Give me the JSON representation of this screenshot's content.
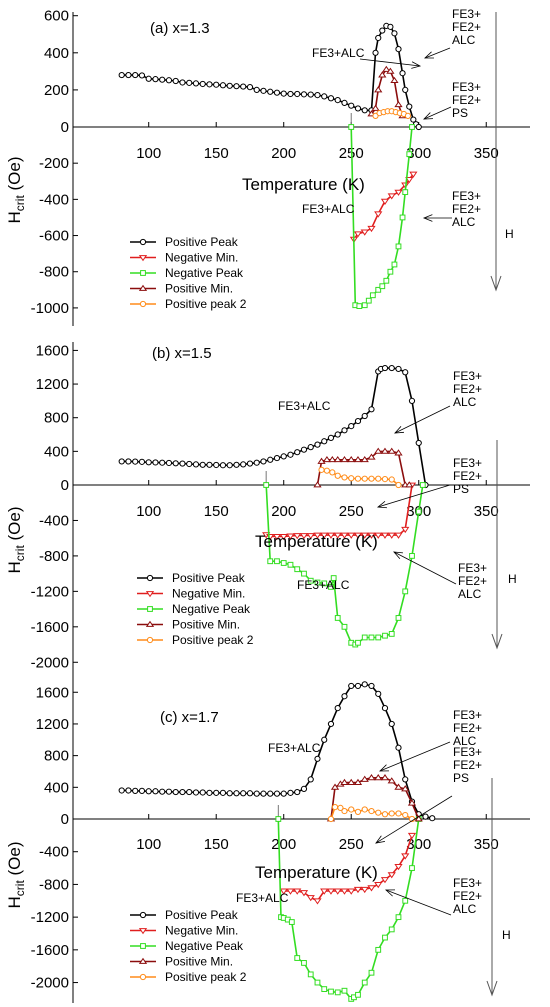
{
  "chart_data": [
    {
      "type": "line",
      "title": "(a)  x=1.3",
      "xlabel": "Temperature (K)",
      "ylabel_main": "H",
      "ylabel_sub": "crit",
      "ylabel_unit": " (Oe)",
      "xlim": [
        58,
        375
      ],
      "ylim": [
        -1100,
        620
      ],
      "xticks": [
        100,
        150,
        200,
        250,
        300,
        350
      ],
      "yticks": [
        600,
        400,
        200,
        0,
        -200,
        -400,
        -600,
        -800,
        -1000
      ],
      "legend_position": "lower-left",
      "series": [
        {
          "name": "Positive Peak",
          "color": "#000000",
          "marker": "circle",
          "x": [
            80,
            85,
            90,
            95,
            100,
            105,
            110,
            115,
            120,
            125,
            130,
            135,
            140,
            145,
            150,
            155,
            160,
            165,
            170,
            175,
            180,
            185,
            190,
            195,
            200,
            205,
            210,
            215,
            220,
            225,
            230,
            235,
            240,
            245,
            250,
            255,
            260,
            265,
            268,
            270,
            273,
            276,
            279,
            282,
            285,
            288,
            290,
            293,
            296,
            298,
            300
          ],
          "y": [
            280,
            280,
            280,
            278,
            260,
            258,
            255,
            252,
            248,
            240,
            238,
            235,
            232,
            230,
            228,
            225,
            222,
            220,
            218,
            215,
            200,
            195,
            190,
            185,
            180,
            178,
            178,
            176,
            175,
            172,
            165,
            155,
            145,
            130,
            115,
            100,
            90,
            90,
            400,
            480,
            520,
            545,
            540,
            505,
            420,
            290,
            200,
            110,
            40,
            15,
            0
          ]
        },
        {
          "name": "Negative Min.",
          "color": "#e01e1e",
          "marker": "triangle-down",
          "x": [
            252,
            255,
            260,
            265,
            270,
            275,
            280,
            285,
            290,
            293,
            296
          ],
          "y": [
            -620,
            -590,
            -580,
            -560,
            -480,
            -410,
            -380,
            -360,
            -320,
            -290,
            -260
          ]
        },
        {
          "name": "Negative Peak",
          "color": "#33dd22",
          "marker": "square",
          "x": [
            250,
            253,
            256,
            260,
            263,
            266,
            270,
            273,
            276,
            279,
            282,
            285,
            288,
            290,
            293,
            295
          ],
          "y": [
            0,
            -985,
            -990,
            -985,
            -960,
            -930,
            -900,
            -880,
            -850,
            -800,
            -760,
            -660,
            -500,
            -360,
            -150,
            0
          ]
        },
        {
          "name": "Positive Min.",
          "color": "#8b0d0d",
          "marker": "triangle-up",
          "x": [
            265,
            268,
            270,
            273,
            276,
            279,
            282,
            285,
            288
          ],
          "y": [
            70,
            100,
            200,
            280,
            310,
            300,
            250,
            120,
            60
          ]
        },
        {
          "name": "Positive peak 2",
          "color": "#ff8c1a",
          "marker": "circle",
          "x": [
            268,
            271,
            274,
            277,
            280,
            283,
            286,
            289,
            292
          ],
          "y": [
            60,
            75,
            80,
            85,
            85,
            80,
            75,
            70,
            60
          ]
        }
      ],
      "annotations": [
        {
          "text": "FE3+ALC"
        },
        {
          "text": "FE3+FE2+ALC"
        },
        {
          "text": "FE3+FE2+PS"
        },
        {
          "text": "FE3+ALC"
        },
        {
          "text": "FE3+FE2+ALC"
        }
      ],
      "field_label": "H"
    },
    {
      "type": "line",
      "title": "(b)  x=1.5",
      "xlabel": "Temperature (K)",
      "ylabel_main": "H",
      "ylabel_sub": "crit",
      "ylabel_unit": " (Oe)",
      "xlim": [
        58,
        375
      ],
      "ylim": [
        -2200,
        1700
      ],
      "xticks": [
        100,
        150,
        200,
        250,
        300,
        350
      ],
      "yticks": [
        1600,
        1200,
        800,
        400,
        0,
        -400,
        -800,
        -1200,
        -1600,
        -2000
      ],
      "legend_position": "lower-left",
      "series": [
        {
          "name": "Positive Peak",
          "color": "#000000",
          "marker": "circle",
          "x": [
            80,
            85,
            90,
            95,
            100,
            105,
            110,
            115,
            120,
            125,
            130,
            135,
            140,
            145,
            150,
            155,
            160,
            165,
            170,
            175,
            180,
            185,
            190,
            195,
            200,
            205,
            210,
            215,
            220,
            225,
            230,
            235,
            240,
            245,
            250,
            255,
            260,
            265,
            270,
            272,
            275,
            280,
            285,
            290,
            295,
            300,
            305
          ],
          "y": [
            280,
            280,
            278,
            275,
            270,
            268,
            265,
            262,
            258,
            255,
            250,
            245,
            240,
            240,
            238,
            235,
            235,
            240,
            245,
            255,
            265,
            280,
            300,
            320,
            340,
            360,
            390,
            420,
            450,
            480,
            520,
            560,
            600,
            650,
            700,
            760,
            820,
            900,
            1350,
            1380,
            1390,
            1390,
            1380,
            1340,
            1000,
            500,
            0
          ]
        },
        {
          "name": "Negative Min.",
          "color": "#e01e1e",
          "marker": "triangle-down",
          "x": [
            187,
            190,
            195,
            200,
            205,
            210,
            215,
            220,
            225,
            230,
            235,
            240,
            245,
            250,
            255,
            260,
            265,
            270,
            275,
            280,
            285,
            290,
            295
          ],
          "y": [
            -560,
            -580,
            -580,
            -580,
            -575,
            -570,
            -570,
            -570,
            -565,
            -565,
            -565,
            -565,
            -565,
            -565,
            -565,
            -565,
            -565,
            -565,
            -565,
            -565,
            -565,
            -500,
            0
          ]
        },
        {
          "name": "Negative Peak",
          "color": "#33dd22",
          "marker": "square",
          "x": [
            187,
            190,
            195,
            200,
            205,
            210,
            215,
            220,
            225,
            230,
            235,
            237,
            240,
            245,
            250,
            253,
            255,
            260,
            265,
            270,
            275,
            280,
            285,
            290,
            295,
            300,
            303
          ],
          "y": [
            0,
            -860,
            -860,
            -880,
            -900,
            -950,
            -1000,
            -1080,
            -1100,
            -1110,
            -1150,
            -1050,
            -1500,
            -1600,
            -1780,
            -1800,
            -1780,
            -1720,
            -1720,
            -1720,
            -1700,
            -1680,
            -1500,
            -1200,
            -800,
            -300,
            0
          ]
        },
        {
          "name": "Positive Min.",
          "color": "#8b0d0d",
          "marker": "triangle-up",
          "x": [
            225,
            228,
            232,
            236,
            240,
            245,
            250,
            255,
            260,
            265,
            270,
            275,
            280,
            285,
            290,
            293
          ],
          "y": [
            0,
            280,
            300,
            300,
            300,
            300,
            300,
            300,
            300,
            330,
            400,
            400,
            400,
            380,
            0,
            0
          ]
        },
        {
          "name": "Positive peak 2",
          "color": "#ff8c1a",
          "marker": "circle",
          "x": [
            228,
            232,
            236,
            240,
            245,
            250,
            255,
            260,
            265,
            270,
            275,
            280,
            285
          ],
          "y": [
            180,
            170,
            150,
            110,
            90,
            80,
            75,
            75,
            75,
            75,
            70,
            65,
            0
          ]
        }
      ],
      "annotations": [
        {
          "text": "FE3+ALC"
        },
        {
          "text": "FE3+FE2+ALC"
        },
        {
          "text": "FE3+FE2+PS"
        },
        {
          "text": "FE3+ALC"
        },
        {
          "text": "FE3+FE2+ALC"
        }
      ],
      "field_label": "H"
    },
    {
      "type": "line",
      "title": "(c)  x=1.7",
      "xlabel": "Temperature (K)",
      "ylabel_main": "H",
      "ylabel_sub": "crit",
      "ylabel_unit": " (Oe)",
      "xlim": [
        58,
        375
      ],
      "ylim": [
        -2250,
        1780
      ],
      "xticks": [
        100,
        150,
        200,
        250,
        300,
        350
      ],
      "yticks": [
        1600,
        1200,
        800,
        400,
        0,
        -400,
        -800,
        -1200,
        -1600,
        -2000
      ],
      "legend_position": "lower-left",
      "series": [
        {
          "name": "Positive Peak",
          "color": "#000000",
          "marker": "circle",
          "x": [
            80,
            85,
            90,
            95,
            100,
            105,
            110,
            115,
            120,
            125,
            130,
            135,
            140,
            145,
            150,
            155,
            160,
            165,
            170,
            175,
            180,
            185,
            190,
            195,
            200,
            205,
            210,
            215,
            220,
            225,
            230,
            235,
            240,
            245,
            250,
            255,
            260,
            265,
            270,
            275,
            280,
            285,
            290,
            295,
            300,
            305,
            310
          ],
          "y": [
            360,
            360,
            355,
            355,
            350,
            350,
            345,
            345,
            340,
            340,
            340,
            335,
            335,
            330,
            330,
            330,
            325,
            325,
            325,
            325,
            320,
            320,
            320,
            320,
            320,
            330,
            340,
            380,
            500,
            760,
            1000,
            1200,
            1400,
            1550,
            1680,
            1680,
            1700,
            1680,
            1580,
            1400,
            1200,
            900,
            500,
            220,
            60,
            30,
            10
          ]
        },
        {
          "name": "Negative Min.",
          "color": "#e01e1e",
          "marker": "triangle-down",
          "x": [
            200,
            205,
            210,
            215,
            220,
            225,
            230,
            235,
            240,
            245,
            250,
            255,
            260,
            265,
            270,
            275,
            280,
            285,
            290,
            295
          ],
          "y": [
            -880,
            -880,
            -880,
            -900,
            -960,
            -1000,
            -880,
            -880,
            -880,
            -880,
            -880,
            -860,
            -860,
            -840,
            -800,
            -740,
            -680,
            -580,
            -450,
            -200
          ]
        },
        {
          "name": "Negative Peak",
          "color": "#33dd22",
          "marker": "square",
          "x": [
            196,
            198,
            200,
            203,
            206,
            210,
            215,
            220,
            225,
            230,
            235,
            240,
            245,
            250,
            252,
            255,
            260,
            265,
            270,
            275,
            280,
            285,
            290,
            295,
            300
          ],
          "y": [
            0,
            -1200,
            -1210,
            -1230,
            -1260,
            -1700,
            -1760,
            -1900,
            -2000,
            -2080,
            -2110,
            -2120,
            -2100,
            -2200,
            -2180,
            -2150,
            -2000,
            -1880,
            -1600,
            -1450,
            -1350,
            -1200,
            -1000,
            -600,
            0
          ]
        },
        {
          "name": "Positive Min.",
          "color": "#8b0d0d",
          "marker": "triangle-up",
          "x": [
            235,
            238,
            242,
            245,
            250,
            255,
            260,
            265,
            270,
            275,
            280,
            285,
            290,
            295,
            300
          ],
          "y": [
            0,
            400,
            440,
            460,
            460,
            460,
            500,
            520,
            520,
            520,
            480,
            400,
            380,
            200,
            0
          ]
        },
        {
          "name": "Positive peak 2",
          "color": "#ff8c1a",
          "marker": "circle",
          "x": [
            235,
            238,
            242,
            245,
            250,
            255,
            260,
            265,
            270,
            275,
            280,
            285,
            290,
            295
          ],
          "y": [
            0,
            150,
            140,
            100,
            120,
            90,
            120,
            100,
            80,
            60,
            70,
            70,
            50,
            0
          ]
        }
      ],
      "annotations": [
        {
          "text": "FE3+ALC"
        },
        {
          "text": "FE3+FE2+ALC"
        },
        {
          "text": "FE3+FE2+PS"
        },
        {
          "text": "FE3+ALC"
        },
        {
          "text": "FE3+FE2+ALC"
        }
      ],
      "field_label": "H"
    }
  ]
}
